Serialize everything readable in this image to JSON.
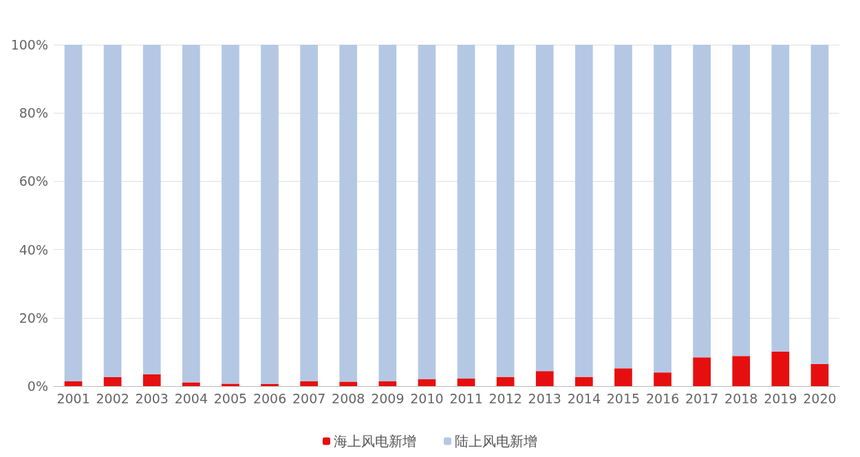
{
  "chart_data": {
    "type": "bar",
    "stacked": true,
    "categories": [
      "2001",
      "2002",
      "2003",
      "2004",
      "2005",
      "2006",
      "2007",
      "2008",
      "2009",
      "2010",
      "2011",
      "2012",
      "2013",
      "2014",
      "2015",
      "2016",
      "2017",
      "2018",
      "2019",
      "2020"
    ],
    "series": [
      {
        "name": "海上风电新增",
        "color": "#e60f0f",
        "values": [
          1.4,
          2.6,
          3.5,
          1.1,
          0.7,
          0.6,
          1.4,
          1.3,
          1.4,
          2.0,
          2.2,
          2.7,
          4.4,
          2.7,
          5.2,
          4.0,
          8.4,
          8.8,
          10.1,
          6.5
        ]
      },
      {
        "name": "陆上风电新增",
        "color": "#b4c8e4",
        "values": [
          98.6,
          97.4,
          96.5,
          98.9,
          99.3,
          99.4,
          98.6,
          98.7,
          98.6,
          98.0,
          97.8,
          97.3,
          95.6,
          97.3,
          94.8,
          96.0,
          91.6,
          91.2,
          89.9,
          93.5
        ]
      }
    ],
    "ylim": [
      0,
      100
    ],
    "yticks": [
      {
        "value": 0,
        "label": "0%"
      },
      {
        "value": 20,
        "label": "20%"
      },
      {
        "value": 40,
        "label": "40%"
      },
      {
        "value": 60,
        "label": "60%"
      },
      {
        "value": 80,
        "label": "80%"
      },
      {
        "value": 100,
        "label": "100%"
      }
    ],
    "grid": "y",
    "legend": "bottom"
  }
}
